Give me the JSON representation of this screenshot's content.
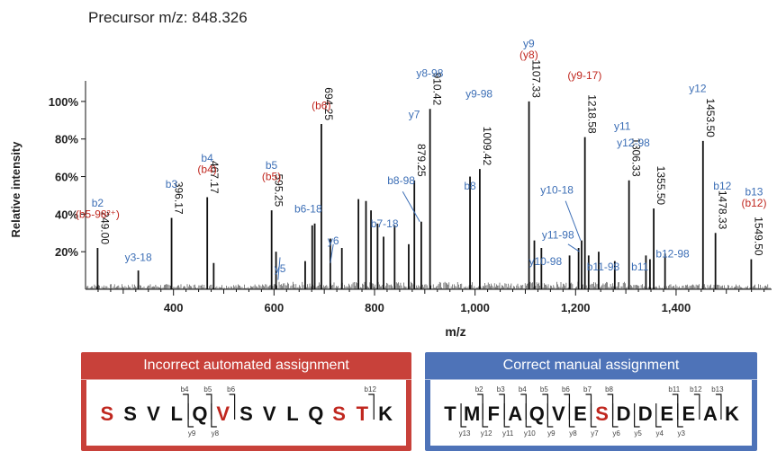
{
  "precursor_label": "Precursor m/z: 848.326",
  "colors": {
    "blue": "#3d6fb6",
    "red": "#c0271f",
    "black": "#111111",
    "grey": "#444444",
    "panel_red": "#c8413a",
    "panel_blue": "#4e73b8"
  },
  "chart_data": {
    "type": "bar",
    "title": "",
    "xlabel": "m/z",
    "ylabel": "Relative intensity",
    "xlim": [
      225,
      1590
    ],
    "ylim": [
      0,
      110
    ],
    "x_ticks": [
      400,
      600,
      800,
      1000,
      1200,
      1400
    ],
    "x_tick_labels": [
      "400",
      "600",
      "800",
      "1,000",
      "1,200",
      "1,400"
    ],
    "y_ticks": [
      20,
      40,
      60,
      80,
      100
    ],
    "y_tick_labels": [
      "20%",
      "40%",
      "60%",
      "80%",
      "100%"
    ],
    "grid": false,
    "legend": "none",
    "peaks": [
      {
        "mz": 249.0,
        "value": 22,
        "label": "249.00"
      },
      {
        "mz": 330,
        "value": 10
      },
      {
        "mz": 396.17,
        "value": 38,
        "label": "396.17"
      },
      {
        "mz": 467.17,
        "value": 49,
        "label": "467.17"
      },
      {
        "mz": 480,
        "value": 14
      },
      {
        "mz": 595.25,
        "value": 42,
        "label": "595.25"
      },
      {
        "mz": 604,
        "value": 20
      },
      {
        "mz": 662,
        "value": 15
      },
      {
        "mz": 676,
        "value": 34
      },
      {
        "mz": 681,
        "value": 35
      },
      {
        "mz": 694.25,
        "value": 88,
        "label": "694.25"
      },
      {
        "mz": 712,
        "value": 27
      },
      {
        "mz": 735,
        "value": 22
      },
      {
        "mz": 768,
        "value": 48
      },
      {
        "mz": 783,
        "value": 47
      },
      {
        "mz": 793,
        "value": 42
      },
      {
        "mz": 806,
        "value": 35
      },
      {
        "mz": 818,
        "value": 28
      },
      {
        "mz": 840,
        "value": 34
      },
      {
        "mz": 868,
        "value": 24
      },
      {
        "mz": 879.25,
        "value": 58,
        "label": "879.25"
      },
      {
        "mz": 893,
        "value": 36
      },
      {
        "mz": 910.42,
        "value": 96,
        "label": "910.42"
      },
      {
        "mz": 990,
        "value": 60
      },
      {
        "mz": 1009.42,
        "value": 64,
        "label": "1009.42"
      },
      {
        "mz": 1107.33,
        "value": 100,
        "label": "1107.33"
      },
      {
        "mz": 1118,
        "value": 26
      },
      {
        "mz": 1132,
        "value": 22
      },
      {
        "mz": 1188,
        "value": 18
      },
      {
        "mz": 1206,
        "value": 22
      },
      {
        "mz": 1212,
        "value": 26
      },
      {
        "mz": 1218.58,
        "value": 81,
        "label": "1218.58"
      },
      {
        "mz": 1226,
        "value": 18
      },
      {
        "mz": 1246,
        "value": 20
      },
      {
        "mz": 1278,
        "value": 15
      },
      {
        "mz": 1306.33,
        "value": 58,
        "label": "1306.33"
      },
      {
        "mz": 1340,
        "value": 18
      },
      {
        "mz": 1348,
        "value": 16
      },
      {
        "mz": 1355.5,
        "value": 43,
        "label": "1355.50"
      },
      {
        "mz": 1378,
        "value": 19
      },
      {
        "mz": 1453.5,
        "value": 79,
        "label": "1453.50"
      },
      {
        "mz": 1478.33,
        "value": 30,
        "label": "1478.33"
      },
      {
        "mz": 1549.5,
        "value": 16,
        "label": "1549.50"
      }
    ],
    "annotations": [
      {
        "text": "b2",
        "color": "blue",
        "mz": 249,
        "value": 44
      },
      {
        "text": "(b5-98²⁺)",
        "color": "red",
        "mz": 249,
        "value": 38
      },
      {
        "text": "y3-18",
        "color": "blue",
        "mz": 330,
        "value": 15
      },
      {
        "text": "b3",
        "color": "blue",
        "mz": 396,
        "value": 54
      },
      {
        "text": "b4",
        "color": "blue",
        "mz": 467,
        "value": 68
      },
      {
        "text": "(b4)",
        "color": "red",
        "mz": 467,
        "value": 62
      },
      {
        "text": "b5",
        "color": "blue",
        "mz": 595,
        "value": 64
      },
      {
        "text": "(b5)",
        "color": "red",
        "mz": 595,
        "value": 58
      },
      {
        "text": "y5",
        "color": "blue",
        "mz": 612,
        "value": 9
      },
      {
        "text": "b6-18",
        "color": "blue",
        "mz": 668,
        "value": 41
      },
      {
        "text": "y6",
        "color": "blue",
        "mz": 718,
        "value": 24
      },
      {
        "text": "(b6)",
        "color": "red",
        "mz": 694,
        "value": 96
      },
      {
        "text": "b7-18",
        "color": "blue",
        "mz": 820,
        "value": 33
      },
      {
        "text": "b8-98",
        "color": "blue",
        "mz": 853,
        "value": 56
      },
      {
        "text": "y7",
        "color": "blue",
        "mz": 879,
        "value": 91
      },
      {
        "text": "y8-98",
        "color": "blue",
        "mz": 910,
        "value": 113
      },
      {
        "text": "y9-98",
        "color": "blue",
        "mz": 1008,
        "value": 102
      },
      {
        "text": "b8",
        "color": "blue",
        "mz": 990,
        "value": 53
      },
      {
        "text": "y9",
        "color": "blue",
        "mz": 1107,
        "value": 129
      },
      {
        "text": "(y8)",
        "color": "red",
        "mz": 1107,
        "value": 123
      },
      {
        "text": "(y9-17)",
        "color": "red",
        "mz": 1218,
        "value": 112
      },
      {
        "text": "y10-18",
        "color": "blue",
        "mz": 1163,
        "value": 51
      },
      {
        "text": "y11-98",
        "color": "blue",
        "mz": 1165,
        "value": 27
      },
      {
        "text": "y10-98",
        "color": "blue",
        "mz": 1140,
        "value": 13
      },
      {
        "text": "b11-98",
        "color": "blue",
        "mz": 1255,
        "value": 10
      },
      {
        "text": "y11",
        "color": "blue",
        "mz": 1293,
        "value": 85
      },
      {
        "text": "y12-98",
        "color": "blue",
        "mz": 1315,
        "value": 76
      },
      {
        "text": "b11",
        "color": "blue",
        "mz": 1328,
        "value": 10
      },
      {
        "text": "b12-98",
        "color": "blue",
        "mz": 1393,
        "value": 17
      },
      {
        "text": "y12",
        "color": "blue",
        "mz": 1443,
        "value": 105
      },
      {
        "text": "b12",
        "color": "blue",
        "mz": 1492,
        "value": 53
      },
      {
        "text": "b13",
        "color": "blue",
        "mz": 1555,
        "value": 50
      },
      {
        "text": "(b12)",
        "color": "red",
        "mz": 1555,
        "value": 44
      }
    ]
  },
  "panels": {
    "incorrect": {
      "title": "Incorrect automated assignment",
      "residues": [
        {
          "aa": "S",
          "red": true
        },
        {
          "aa": "S",
          "red": false
        },
        {
          "aa": "V",
          "red": false
        },
        {
          "aa": "L",
          "red": false
        },
        {
          "aa": "Q",
          "red": false
        },
        {
          "aa": "V",
          "red": true
        },
        {
          "aa": "S",
          "red": false
        },
        {
          "aa": "V",
          "red": false
        },
        {
          "aa": "L",
          "red": false
        },
        {
          "aa": "Q",
          "red": false
        },
        {
          "aa": "S",
          "red": true
        },
        {
          "aa": "T",
          "red": true
        },
        {
          "aa": "K",
          "red": false
        }
      ],
      "b_ions": [
        {
          "label": "b4",
          "after": 4
        },
        {
          "label": "b5",
          "after": 5
        },
        {
          "label": "b6",
          "after": 6
        },
        {
          "label": "b12",
          "after": 12
        }
      ],
      "y_ions": [
        {
          "label": "y9",
          "after": 4
        },
        {
          "label": "y8",
          "after": 5
        }
      ]
    },
    "correct": {
      "title": "Correct manual assignment",
      "residues": [
        {
          "aa": "T",
          "red": false
        },
        {
          "aa": "M",
          "red": false
        },
        {
          "aa": "F",
          "red": false
        },
        {
          "aa": "A",
          "red": false
        },
        {
          "aa": "Q",
          "red": false
        },
        {
          "aa": "V",
          "red": false
        },
        {
          "aa": "E",
          "red": false
        },
        {
          "aa": "S",
          "red": true
        },
        {
          "aa": "D",
          "red": false
        },
        {
          "aa": "D",
          "red": false
        },
        {
          "aa": "E",
          "red": false
        },
        {
          "aa": "E",
          "red": false
        },
        {
          "aa": "A",
          "red": false
        },
        {
          "aa": "K",
          "red": false
        }
      ],
      "b_ions": [
        {
          "label": "b2",
          "after": 2
        },
        {
          "label": "b3",
          "after": 3
        },
        {
          "label": "b4",
          "after": 4
        },
        {
          "label": "b5",
          "after": 5
        },
        {
          "label": "b6",
          "after": 6
        },
        {
          "label": "b7",
          "after": 7
        },
        {
          "label": "b8",
          "after": 8
        },
        {
          "label": "b11",
          "after": 11
        },
        {
          "label": "b12",
          "after": 12
        },
        {
          "label": "b13",
          "after": 13
        }
      ],
      "y_ions": [
        {
          "label": "y13",
          "after": 1
        },
        {
          "label": "y12",
          "after": 2
        },
        {
          "label": "y11",
          "after": 3
        },
        {
          "label": "y10",
          "after": 4
        },
        {
          "label": "y9",
          "after": 5
        },
        {
          "label": "y8",
          "after": 6
        },
        {
          "label": "y7",
          "after": 7
        },
        {
          "label": "y6",
          "after": 8
        },
        {
          "label": "y5",
          "after": 9
        },
        {
          "label": "y4",
          "after": 10
        },
        {
          "label": "y3",
          "after": 11
        }
      ]
    }
  }
}
